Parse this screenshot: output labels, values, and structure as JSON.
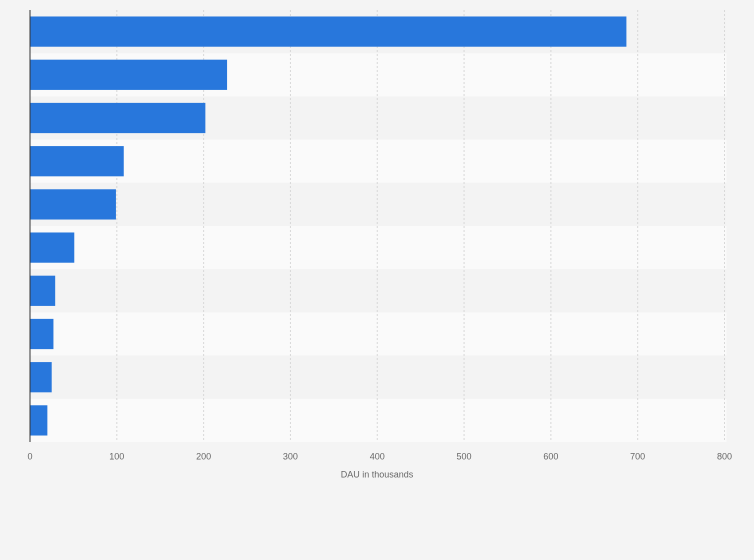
{
  "chart_data": {
    "type": "bar",
    "orientation": "horizontal",
    "x_label": "DAU in thousands",
    "categories": [
      null,
      null,
      null,
      null,
      null,
      null,
      null,
      null,
      null,
      null
    ],
    "values": [
      687,
      227,
      202,
      108,
      99,
      51,
      29,
      27,
      25,
      20
    ],
    "color": "#2877dc",
    "xlim": [
      0,
      800
    ],
    "xticks": [
      0,
      100,
      200,
      300,
      400,
      500,
      600,
      700,
      800
    ],
    "grid": true
  }
}
